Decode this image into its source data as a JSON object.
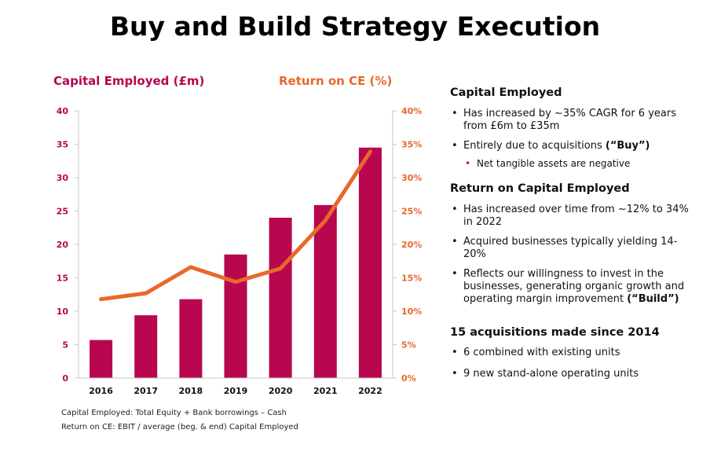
{
  "title": "Buy and Build Strategy Execution",
  "chart_data": {
    "type": "bar",
    "categories": [
      "2016",
      "2017",
      "2018",
      "2019",
      "2020",
      "2021",
      "2022"
    ],
    "series": [
      {
        "name": "Capital Employed (£m)",
        "type": "bar",
        "axis": "left",
        "color": "#b8064f",
        "values": [
          5.7,
          9.4,
          11.8,
          18.5,
          24.0,
          25.9,
          34.5
        ]
      },
      {
        "name": "Return on CE (%)",
        "type": "line",
        "axis": "right",
        "color": "#e8682a",
        "values": [
          11.8,
          12.7,
          16.6,
          14.4,
          16.4,
          23.6,
          33.9
        ]
      }
    ],
    "y_left": {
      "label": "Capital Employed (£m)",
      "range": [
        0,
        40
      ],
      "ticks": [
        "0",
        "5",
        "10",
        "15",
        "20",
        "25",
        "30",
        "35",
        "40"
      ]
    },
    "y_right": {
      "label": "Return on CE (%)",
      "range": [
        0,
        40
      ],
      "ticks": [
        "0%",
        "5%",
        "10%",
        "15%",
        "20%",
        "25%",
        "30%",
        "35%",
        "40%"
      ]
    },
    "grid": false,
    "legend": "none"
  },
  "notes": [
    "Capital Employed: Total Equity + Bank borrowings – Cash",
    "Return on CE:  EBIT / average (beg. & end) Capital Employed"
  ],
  "panel": {
    "capital_employed": {
      "heading": "Capital Employed",
      "bullet1": "Has increased by ~35% CAGR for 6 years from £6m to £35m",
      "bullet2_text": "Entirely due to acquisitions ",
      "bullet2_bold": "(“Buy”)",
      "sub_bullet": "Net tangible assets are negative"
    },
    "roce": {
      "heading": "Return on Capital Employed",
      "bullet1": "Has increased over time from ~12% to 34% in 2022",
      "bullet2": "Acquired businesses typically yielding 14-20%",
      "bullet3_text": "Reflects our willingness to invest in the businesses, generating organic growth and operating margin improvement ",
      "bullet3_bold": "(“Build”)"
    },
    "acquisitions": {
      "heading": "15 acquisitions made since 2014",
      "bullet1": "6 combined with existing units",
      "bullet2": "9 new stand-alone operating units"
    }
  }
}
